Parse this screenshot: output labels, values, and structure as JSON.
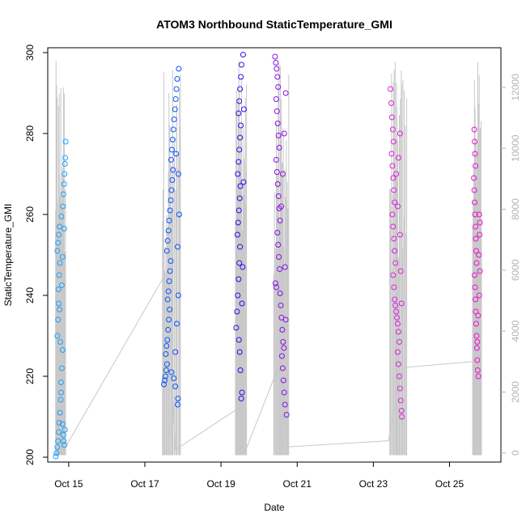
{
  "chart_data": {
    "type": "scatter",
    "title": "ATOM3 Northbound StaticTemperature_GMI",
    "xlabel": "Date",
    "ylabel": "StaticTemperature_GMI",
    "y2label": "",
    "xlim": [
      14.45,
      26.35
    ],
    "ylim": [
      198.8,
      301.2
    ],
    "y2lim": [
      -300,
      13300
    ],
    "x_ticks": [
      {
        "value": 15,
        "label": "Oct 15"
      },
      {
        "value": 17,
        "label": "Oct 17"
      },
      {
        "value": 19,
        "label": "Oct 19"
      },
      {
        "value": 21,
        "label": "Oct 21"
      },
      {
        "value": 23,
        "label": "Oct 23"
      },
      {
        "value": 25,
        "label": "Oct 25"
      }
    ],
    "y_ticks": [
      200,
      220,
      240,
      260,
      280,
      300
    ],
    "y2_ticks": [
      0,
      2000,
      4000,
      6000,
      8000,
      10000,
      12000
    ],
    "grid": false,
    "legend": "none",
    "colors": {
      "altitude_line": "#c8c8c8",
      "flight1": "#1aa3ff",
      "flight2": "#0a55ff",
      "flight3": "#2a10ee",
      "flight4": "#8a10e8",
      "flight5": "#e020e0",
      "flight6": "#f010d8"
    },
    "series": [
      {
        "marker": "circle",
        "color": "#1aa3ff",
        "x_range": [
          14.65,
          14.92
        ],
        "points": [
          [
            14.66,
            200.2
          ],
          [
            14.68,
            201.0
          ],
          [
            14.7,
            202.5
          ],
          [
            14.72,
            204.0
          ],
          [
            14.74,
            206.2
          ],
          [
            14.75,
            208.5
          ],
          [
            14.77,
            211.0
          ],
          [
            14.79,
            214.2
          ],
          [
            14.8,
            218.5
          ],
          [
            14.82,
            222.0
          ],
          [
            14.84,
            226.5
          ],
          [
            14.7,
            230.0
          ],
          [
            14.72,
            234.0
          ],
          [
            14.74,
            238.0
          ],
          [
            14.73,
            241.5
          ],
          [
            14.75,
            245.0
          ],
          [
            14.77,
            248.0
          ],
          [
            14.7,
            251.0
          ],
          [
            14.72,
            253.0
          ],
          [
            14.74,
            255.0
          ],
          [
            14.76,
            257.0
          ],
          [
            14.81,
            259.5
          ],
          [
            14.85,
            262.0
          ],
          [
            14.86,
            265.0
          ],
          [
            14.88,
            267.5
          ],
          [
            14.89,
            270.0
          ],
          [
            14.9,
            272.5
          ],
          [
            14.91,
            274.0
          ],
          [
            14.92,
            278.0
          ],
          [
            14.86,
            205.5
          ],
          [
            14.87,
            204.0
          ],
          [
            14.89,
            203.0
          ],
          [
            14.9,
            206.8
          ],
          [
            14.84,
            208.2
          ],
          [
            14.8,
            216.0
          ],
          [
            14.78,
            228.5
          ],
          [
            14.76,
            236.5
          ],
          [
            14.82,
            242.5
          ],
          [
            14.84,
            249.5
          ],
          [
            14.88,
            256.5
          ]
        ]
      },
      {
        "marker": "circle",
        "color": "#0a55ff",
        "x_range": [
          17.45,
          17.95
        ],
        "points": [
          [
            17.5,
            218.0
          ],
          [
            17.52,
            219.0
          ],
          [
            17.54,
            220.0
          ],
          [
            17.56,
            221.5
          ],
          [
            17.58,
            223.0
          ],
          [
            17.55,
            225.5
          ],
          [
            17.57,
            227.5
          ],
          [
            17.59,
            229.0
          ],
          [
            17.61,
            231.5
          ],
          [
            17.63,
            234.0
          ],
          [
            17.65,
            236.5
          ],
          [
            17.6,
            239.0
          ],
          [
            17.62,
            241.0
          ],
          [
            17.64,
            243.5
          ],
          [
            17.66,
            246.0
          ],
          [
            17.68,
            248.5
          ],
          [
            17.58,
            251.0
          ],
          [
            17.6,
            253.5
          ],
          [
            17.62,
            256.0
          ],
          [
            17.64,
            258.5
          ],
          [
            17.66,
            261.0
          ],
          [
            17.68,
            263.5
          ],
          [
            17.7,
            266.0
          ],
          [
            17.72,
            268.5
          ],
          [
            17.74,
            271.0
          ],
          [
            17.69,
            273.5
          ],
          [
            17.71,
            276.0
          ],
          [
            17.73,
            278.5
          ],
          [
            17.75,
            281.0
          ],
          [
            17.77,
            283.5
          ],
          [
            17.79,
            286.0
          ],
          [
            17.81,
            288.5
          ],
          [
            17.83,
            291.0
          ],
          [
            17.85,
            293.5
          ],
          [
            17.89,
            296.0
          ],
          [
            17.86,
            213.0
          ],
          [
            17.87,
            214.5
          ],
          [
            17.8,
            217.5
          ],
          [
            17.76,
            219.5
          ],
          [
            17.7,
            221.0
          ],
          [
            17.8,
            226.0
          ],
          [
            17.84,
            233.0
          ],
          [
            17.88,
            240.0
          ],
          [
            17.86,
            252.0
          ],
          [
            17.9,
            260.0
          ],
          [
            17.88,
            270.0
          ],
          [
            17.82,
            275.0
          ]
        ]
      },
      {
        "marker": "circle",
        "color": "#2a10ee",
        "x_range": [
          19.38,
          19.68
        ],
        "points": [
          [
            19.4,
            232.0
          ],
          [
            19.42,
            236.0
          ],
          [
            19.44,
            240.0
          ],
          [
            19.46,
            244.0
          ],
          [
            19.48,
            248.0
          ],
          [
            19.5,
            252.0
          ],
          [
            19.43,
            255.0
          ],
          [
            19.45,
            258.0
          ],
          [
            19.47,
            261.0
          ],
          [
            19.49,
            264.0
          ],
          [
            19.51,
            267.0
          ],
          [
            19.44,
            270.0
          ],
          [
            19.46,
            273.0
          ],
          [
            19.48,
            276.0
          ],
          [
            19.5,
            279.0
          ],
          [
            19.52,
            282.0
          ],
          [
            19.46,
            285.0
          ],
          [
            19.48,
            288.0
          ],
          [
            19.5,
            291.0
          ],
          [
            19.52,
            294.0
          ],
          [
            19.54,
            297.0
          ],
          [
            19.58,
            299.5
          ],
          [
            19.53,
            214.5
          ],
          [
            19.55,
            216.0
          ],
          [
            19.51,
            221.5
          ],
          [
            19.49,
            226.0
          ],
          [
            19.47,
            229.0
          ],
          [
            19.55,
            238.0
          ],
          [
            19.57,
            247.0
          ],
          [
            19.59,
            268.0
          ],
          [
            19.6,
            286.0
          ]
        ]
      },
      {
        "marker": "circle",
        "color": "#8a10e8",
        "x_range": [
          20.38,
          20.78
        ],
        "points": [
          [
            20.42,
            299.0
          ],
          [
            20.44,
            297.5
          ],
          [
            20.46,
            296.0
          ],
          [
            20.48,
            294.0
          ],
          [
            20.5,
            291.5
          ],
          [
            20.45,
            288.5
          ],
          [
            20.47,
            285.5
          ],
          [
            20.49,
            282.5
          ],
          [
            20.51,
            279.5
          ],
          [
            20.53,
            276.5
          ],
          [
            20.45,
            273.5
          ],
          [
            20.47,
            270.5
          ],
          [
            20.49,
            267.5
          ],
          [
            20.51,
            264.5
          ],
          [
            20.53,
            261.5
          ],
          [
            20.55,
            258.5
          ],
          [
            20.48,
            255.5
          ],
          [
            20.5,
            252.5
          ],
          [
            20.52,
            249.5
          ],
          [
            20.54,
            246.5
          ],
          [
            20.43,
            243.0
          ],
          [
            20.45,
            242.0
          ],
          [
            20.55,
            240.5
          ],
          [
            20.57,
            237.5
          ],
          [
            20.59,
            234.5
          ],
          [
            20.61,
            231.5
          ],
          [
            20.63,
            228.5
          ],
          [
            20.65,
            227.0
          ],
          [
            20.6,
            225.0
          ],
          [
            20.62,
            222.0
          ],
          [
            20.64,
            219.0
          ],
          [
            20.66,
            216.0
          ],
          [
            20.68,
            213.0
          ],
          [
            20.72,
            210.5
          ],
          [
            20.58,
            262.0
          ],
          [
            20.62,
            270.0
          ],
          [
            20.66,
            280.0
          ],
          [
            20.7,
            290.0
          ],
          [
            20.68,
            247.0
          ],
          [
            20.7,
            234.0
          ]
        ]
      },
      {
        "marker": "circle",
        "color": "#e020e0",
        "x_range": [
          23.42,
          23.88
        ],
        "points": [
          [
            23.45,
            291.0
          ],
          [
            23.47,
            287.5
          ],
          [
            23.49,
            284.0
          ],
          [
            23.51,
            281.0
          ],
          [
            23.53,
            278.0
          ],
          [
            23.48,
            275.0
          ],
          [
            23.5,
            272.0
          ],
          [
            23.52,
            269.0
          ],
          [
            23.54,
            266.0
          ],
          [
            23.56,
            263.0
          ],
          [
            23.5,
            260.0
          ],
          [
            23.52,
            257.0
          ],
          [
            23.54,
            254.0
          ],
          [
            23.56,
            251.0
          ],
          [
            23.58,
            248.0
          ],
          [
            23.52,
            245.0
          ],
          [
            23.54,
            242.0
          ],
          [
            23.56,
            239.0
          ],
          [
            23.58,
            237.5
          ],
          [
            23.6,
            236.0
          ],
          [
            23.62,
            234.5
          ],
          [
            23.64,
            233.0
          ],
          [
            23.66,
            231.0
          ],
          [
            23.68,
            228.5
          ],
          [
            23.64,
            226.0
          ],
          [
            23.66,
            223.0
          ],
          [
            23.68,
            220.0
          ],
          [
            23.7,
            217.0
          ],
          [
            23.72,
            214.0
          ],
          [
            23.74,
            211.5
          ],
          [
            23.75,
            210.0
          ],
          [
            23.6,
            270.0
          ],
          [
            23.64,
            262.0
          ],
          [
            23.7,
            255.0
          ],
          [
            23.72,
            246.0
          ],
          [
            23.74,
            238.0
          ],
          [
            23.66,
            274.0
          ],
          [
            23.7,
            280.0
          ]
        ]
      },
      {
        "marker": "circle",
        "color": "#f010d8",
        "x_range": [
          25.6,
          25.85
        ],
        "points": [
          [
            25.65,
            281.0
          ],
          [
            25.66,
            278.0
          ],
          [
            25.67,
            275.0
          ],
          [
            25.68,
            272.0
          ],
          [
            25.64,
            269.0
          ],
          [
            25.65,
            266.0
          ],
          [
            25.66,
            263.0
          ],
          [
            25.67,
            260.0
          ],
          [
            25.68,
            257.0
          ],
          [
            25.69,
            254.0
          ],
          [
            25.7,
            251.0
          ],
          [
            25.71,
            248.0
          ],
          [
            25.66,
            245.0
          ],
          [
            25.67,
            242.0
          ],
          [
            25.68,
            239.0
          ],
          [
            25.69,
            236.0
          ],
          [
            25.7,
            233.0
          ],
          [
            25.71,
            230.0
          ],
          [
            25.72,
            227.0
          ],
          [
            25.73,
            224.0
          ],
          [
            25.74,
            221.5
          ],
          [
            25.76,
            220.0
          ],
          [
            25.78,
            260.0
          ],
          [
            25.8,
            258.0
          ],
          [
            25.79,
            255.0
          ],
          [
            25.77,
            250.0
          ],
          [
            25.75,
            235.0
          ],
          [
            25.73,
            228.5
          ],
          [
            25.8,
            246.0
          ],
          [
            25.78,
            240.0
          ]
        ]
      }
    ],
    "y2_series": {
      "name": "",
      "color": "#c8c8c8",
      "trend": [
        [
          14.65,
          150
        ],
        [
          14.92,
          200
        ],
        [
          17.6,
          6000
        ],
        [
          17.8,
          100
        ],
        [
          19.5,
          1500
        ],
        [
          19.62,
          0
        ],
        [
          20.5,
          2800
        ],
        [
          20.75,
          200
        ],
        [
          23.4,
          400
        ],
        [
          23.75,
          2800
        ],
        [
          25.65,
          3000
        ],
        [
          25.82,
          3200
        ]
      ]
    }
  }
}
